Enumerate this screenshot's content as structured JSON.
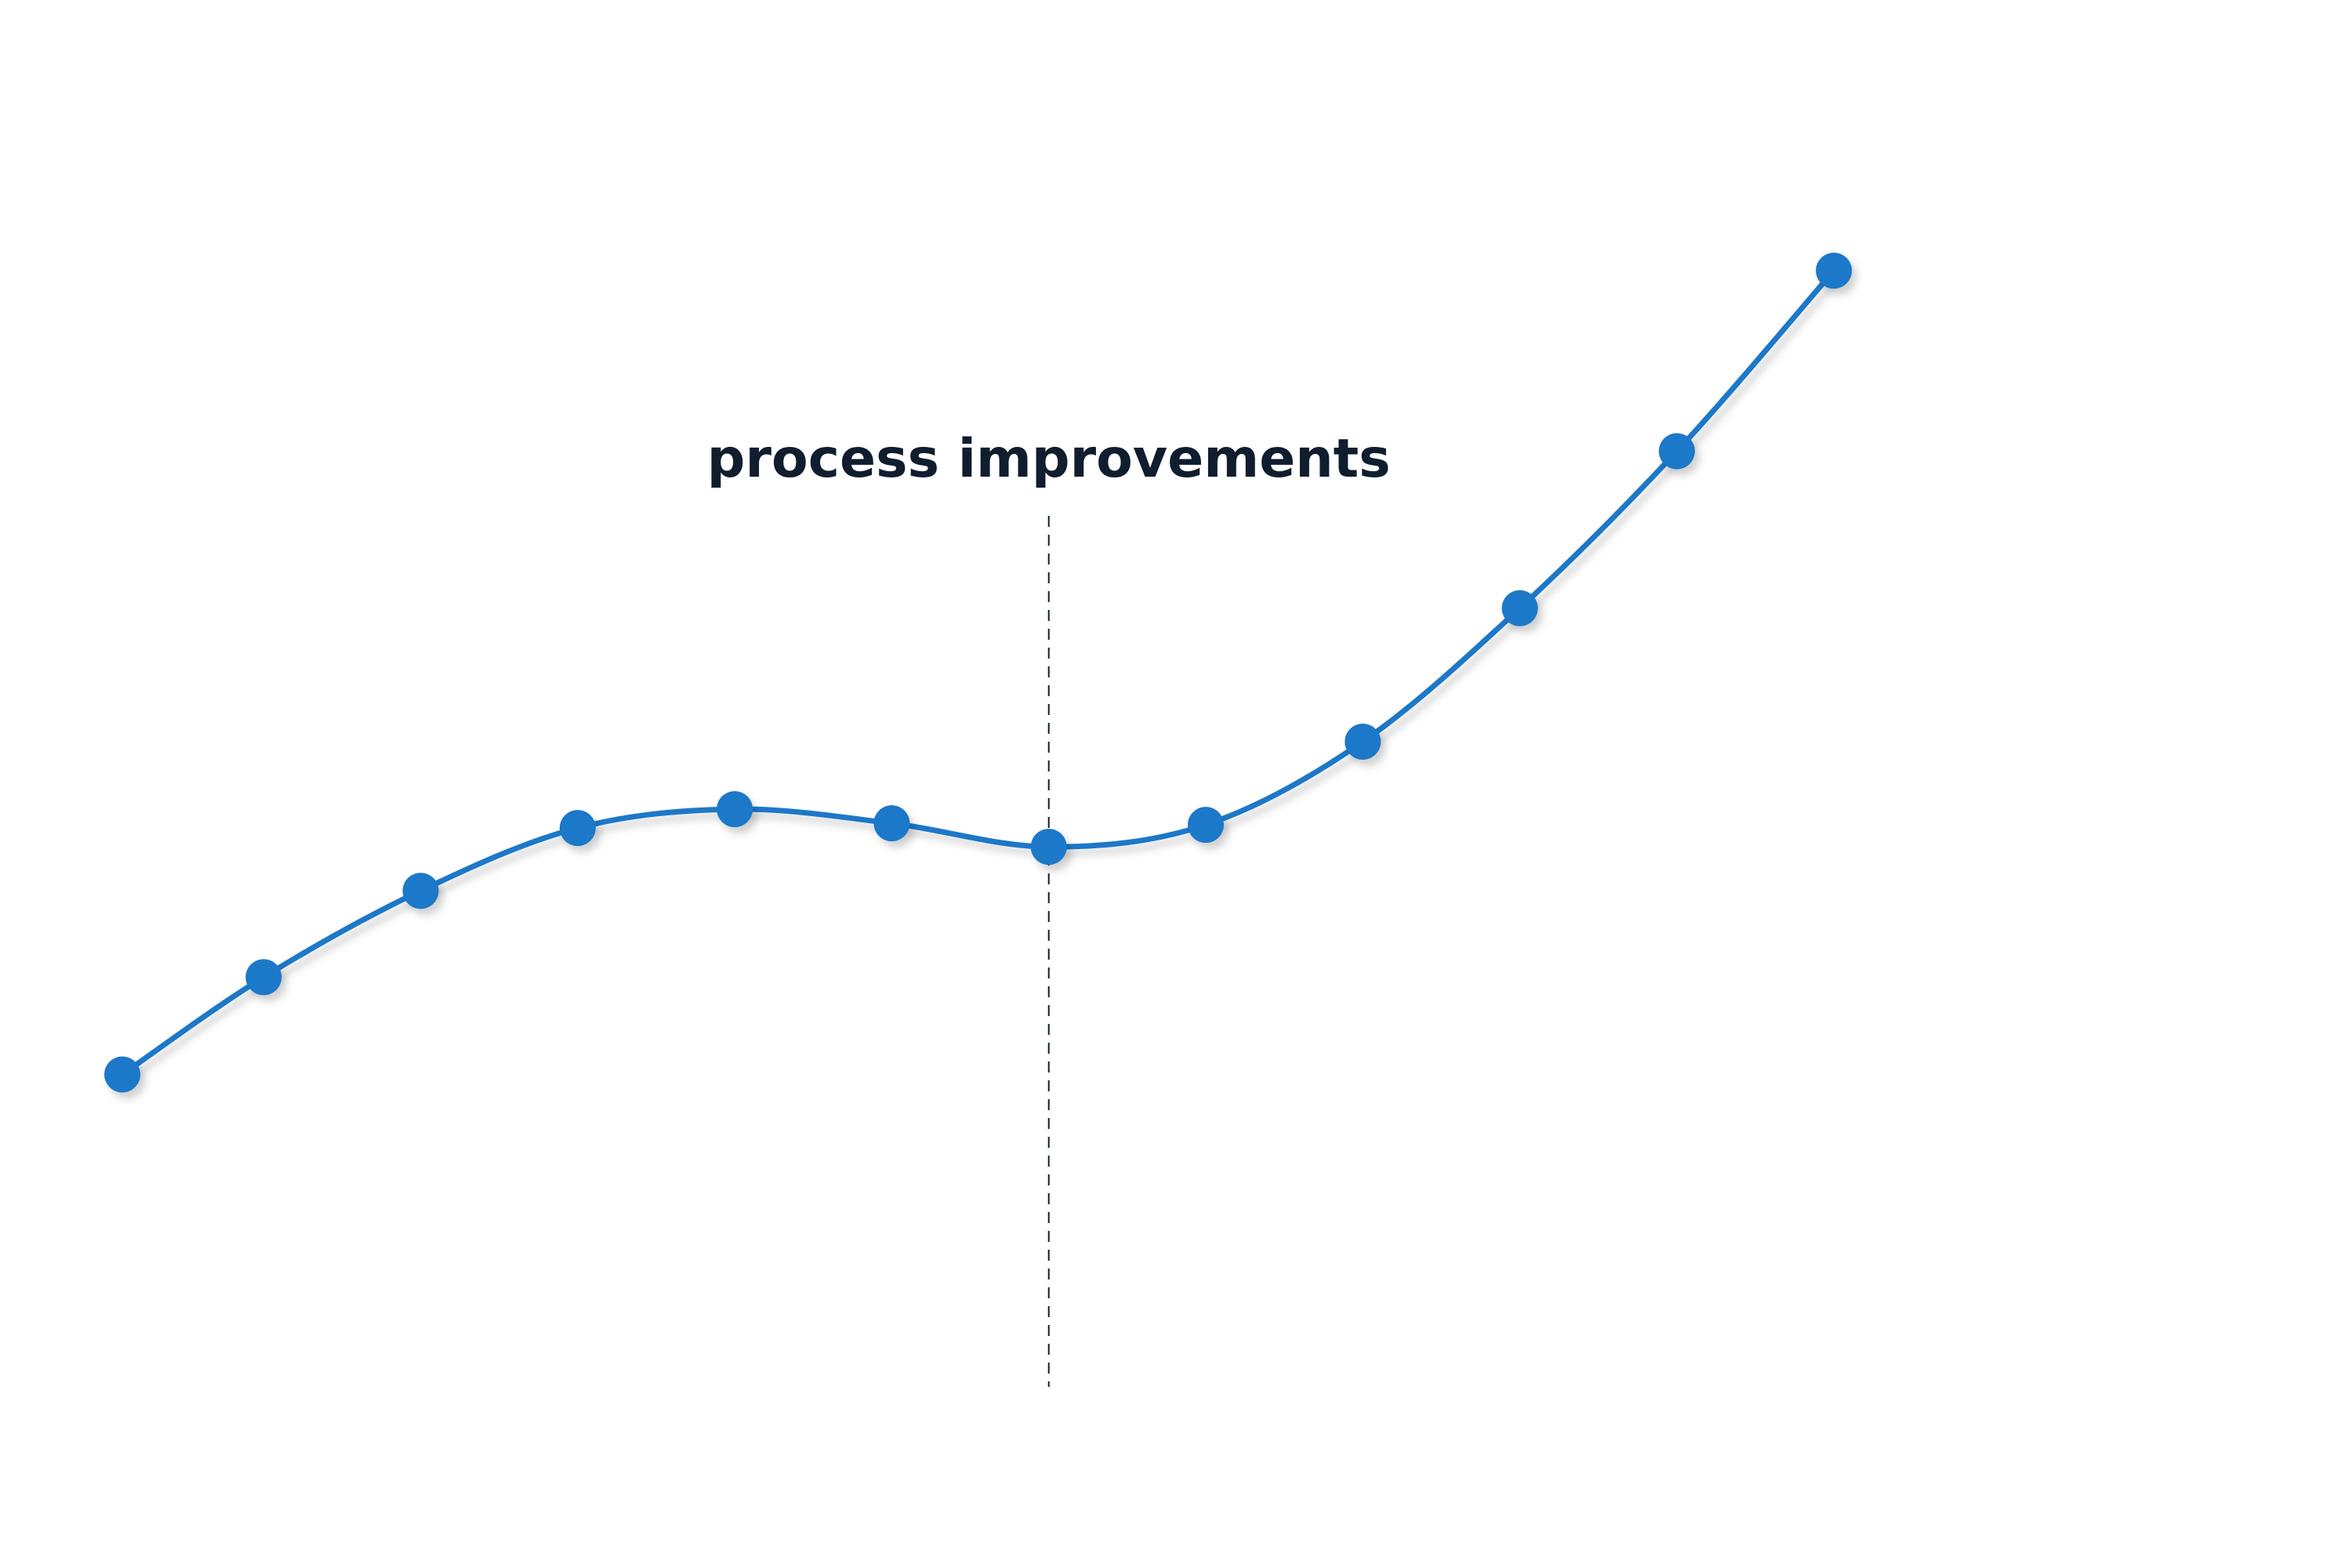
{
  "chart_data": {
    "type": "line",
    "title": "",
    "xlabel": "",
    "ylabel": "",
    "x": [
      0.1,
      1,
      2,
      3,
      4,
      5,
      6,
      7,
      8,
      9,
      10,
      11
    ],
    "series": [
      {
        "values": [
          1.03,
          1.65,
          2.2,
          2.6,
          2.72,
          2.63,
          2.48,
          2.62,
          3.15,
          4.0,
          5.0,
          6.15
        ]
      }
    ],
    "xlim": [
      0,
      14
    ],
    "ylim": [
      -1,
      7
    ],
    "x_ticks": [
      0,
      1,
      2,
      3,
      4,
      5,
      6,
      7,
      8,
      9,
      10,
      11,
      12,
      13,
      14
    ],
    "y_ticks": [
      -1,
      0,
      1,
      2,
      3,
      4,
      5,
      6,
      7
    ],
    "tick_labels_shown": false,
    "grid": false,
    "legend": "none",
    "annotations": [
      {
        "text": "process improvements",
        "x": 6
      }
    ],
    "colors": {
      "series": "#1e78c8",
      "axis": "#0f1d2e"
    }
  }
}
